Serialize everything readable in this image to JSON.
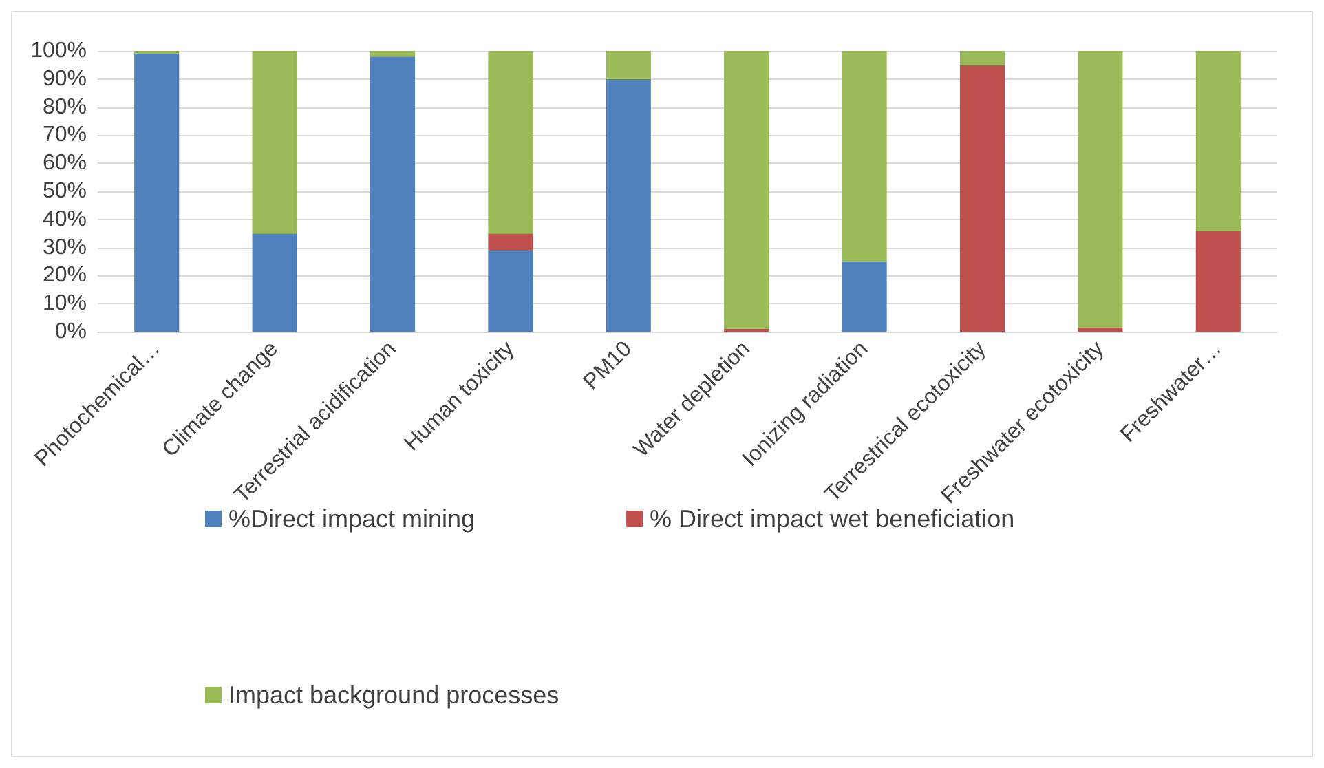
{
  "chart_data": {
    "type": "bar",
    "stacked": true,
    "categories": [
      "Photochemical…",
      "Climate change",
      "Terrestrial acidification",
      "Human toxicity",
      "PM10",
      "Water depletion",
      "Ionizing radiation",
      "Terrestrical ecotoxicity",
      "Freshwater ecotoxicity",
      "Freshwater…"
    ],
    "series": [
      {
        "name": "%Direct impact mining",
        "color": "#4f81bd",
        "values": [
          99,
          35,
          98,
          29,
          90,
          0,
          25,
          0,
          0,
          0
        ]
      },
      {
        "name": "% Direct impact wet beneficiation",
        "color": "#c0504d",
        "values": [
          0,
          0,
          0,
          6,
          0,
          1,
          0,
          95,
          1.5,
          36
        ]
      },
      {
        "name": "Impact background processes",
        "color": "#9bbb59",
        "values": [
          1,
          65,
          2,
          65,
          10,
          99,
          75,
          5,
          98.5,
          64
        ]
      }
    ],
    "ylim": [
      0,
      100
    ],
    "yticks": [
      {
        "value": 0,
        "label": "0%"
      },
      {
        "value": 10,
        "label": "10%"
      },
      {
        "value": 20,
        "label": "20%"
      },
      {
        "value": 30,
        "label": "30%"
      },
      {
        "value": 40,
        "label": "40%"
      },
      {
        "value": 50,
        "label": "50%"
      },
      {
        "value": 60,
        "label": "60%"
      },
      {
        "value": 70,
        "label": "70%"
      },
      {
        "value": 80,
        "label": "80%"
      },
      {
        "value": 90,
        "label": "90%"
      },
      {
        "value": 100,
        "label": "100%"
      }
    ],
    "grid": "y",
    "legend": "bottom"
  }
}
